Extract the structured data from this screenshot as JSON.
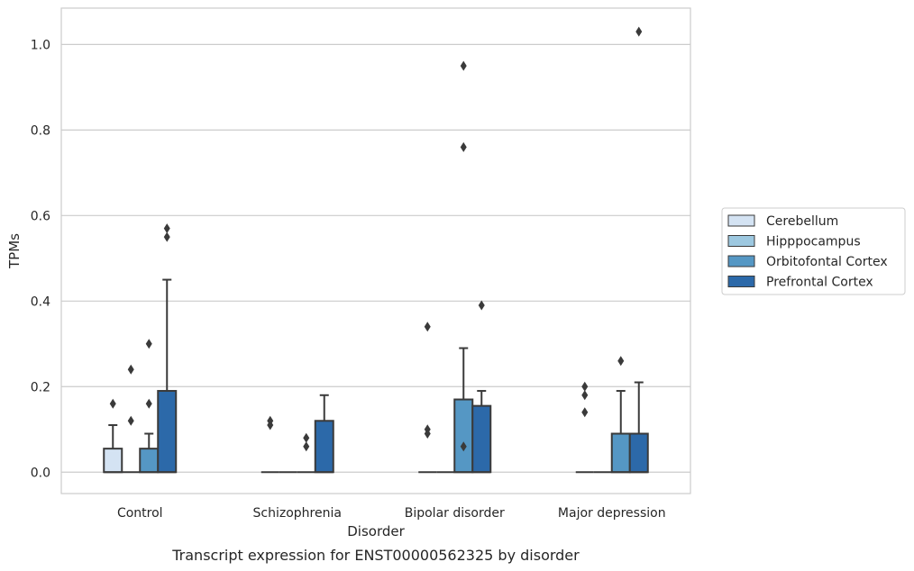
{
  "chart_data": {
    "type": "box",
    "caption": "Transcript expression for ENST00000562325 by disorder",
    "xlabel": "Disorder",
    "ylabel": "TPMs",
    "ylim": [
      -0.05,
      1.085
    ],
    "yticks": [
      0.0,
      0.2,
      0.4,
      0.6,
      0.8,
      1.0
    ],
    "ytick_labels": [
      "0.0",
      "0.2",
      "0.4",
      "0.6",
      "0.8",
      "1.0"
    ],
    "grid": "horizontal",
    "legend_position": "right",
    "categories": [
      "Control",
      "Schizophrenia",
      "Bipolar disorder",
      "Major depression"
    ],
    "series": [
      {
        "name": "Cerebellum",
        "color": "#d4e3f3",
        "boxes": [
          {
            "q1": 0.0,
            "median": 0.0,
            "q3": 0.055,
            "whisker_low": 0.0,
            "whisker_high": 0.11,
            "outliers": [
              0.16
            ]
          },
          {
            "q1": 0.0,
            "median": 0.0,
            "q3": 0.0,
            "whisker_low": 0.0,
            "whisker_high": 0.0,
            "outliers": [
              0.11,
              0.12
            ]
          },
          {
            "q1": 0.0,
            "median": 0.0,
            "q3": 0.0,
            "whisker_low": 0.0,
            "whisker_high": 0.0,
            "outliers": [
              0.34,
              0.09,
              0.1
            ]
          },
          {
            "q1": 0.0,
            "median": 0.0,
            "q3": 0.0,
            "whisker_low": 0.0,
            "whisker_high": 0.0,
            "outliers": [
              0.14,
              0.18,
              0.2
            ]
          }
        ]
      },
      {
        "name": "Hipppocampus",
        "color": "#9dc8e0",
        "boxes": [
          {
            "q1": 0.0,
            "median": 0.0,
            "q3": 0.0,
            "whisker_low": 0.0,
            "whisker_high": 0.0,
            "outliers": [
              0.12,
              0.24
            ]
          },
          {
            "q1": 0.0,
            "median": 0.0,
            "q3": 0.0,
            "whisker_low": 0.0,
            "whisker_high": 0.0,
            "outliers": []
          },
          {
            "q1": 0.0,
            "median": 0.0,
            "q3": 0.0,
            "whisker_low": 0.0,
            "whisker_high": 0.0,
            "outliers": []
          },
          {
            "q1": 0.0,
            "median": 0.0,
            "q3": 0.0,
            "whisker_low": 0.0,
            "whisker_high": 0.0,
            "outliers": []
          }
        ]
      },
      {
        "name": "Orbitofontal Cortex",
        "color": "#5597c4",
        "boxes": [
          {
            "q1": 0.0,
            "median": 0.0,
            "q3": 0.055,
            "whisker_low": 0.0,
            "whisker_high": 0.09,
            "outliers": [
              0.16,
              0.3
            ]
          },
          {
            "q1": 0.0,
            "median": 0.0,
            "q3": 0.0,
            "whisker_low": 0.0,
            "whisker_high": 0.0,
            "outliers": [
              0.06,
              0.08
            ]
          },
          {
            "q1": 0.0,
            "median": 0.0,
            "q3": 0.17,
            "whisker_low": 0.0,
            "whisker_high": 0.29,
            "outliers": [
              0.06,
              0.95,
              0.76
            ]
          },
          {
            "q1": 0.0,
            "median": 0.0,
            "q3": 0.09,
            "whisker_low": 0.0,
            "whisker_high": 0.19,
            "outliers": [
              0.26
            ]
          }
        ]
      },
      {
        "name": "Prefrontal Cortex",
        "color": "#2c69a9",
        "boxes": [
          {
            "q1": 0.0,
            "median": 0.0,
            "q3": 0.19,
            "whisker_low": 0.0,
            "whisker_high": 0.45,
            "outliers": [
              0.55,
              0.57
            ]
          },
          {
            "q1": 0.0,
            "median": 0.0,
            "q3": 0.12,
            "whisker_low": 0.0,
            "whisker_high": 0.18,
            "outliers": []
          },
          {
            "q1": 0.0,
            "median": 0.0,
            "q3": 0.155,
            "whisker_low": 0.0,
            "whisker_high": 0.19,
            "outliers": [
              0.39
            ]
          },
          {
            "q1": 0.0,
            "median": 0.0,
            "q3": 0.09,
            "whisker_low": 0.0,
            "whisker_high": 0.21,
            "outliers": [
              1.03
            ]
          }
        ]
      }
    ]
  }
}
